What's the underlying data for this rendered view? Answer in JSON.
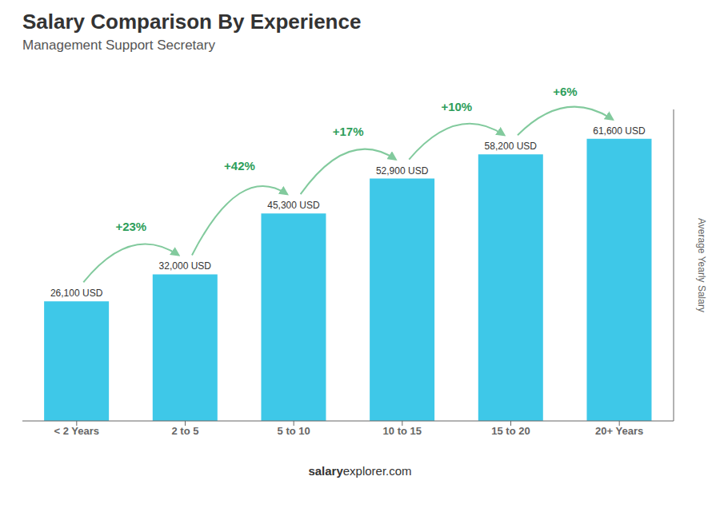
{
  "chart_data": {
    "type": "bar",
    "title": "Salary Comparison By Experience",
    "subtitle": "Management Support Secretary",
    "categories": [
      "< 2 Years",
      "2 to 5",
      "5 to 10",
      "10 to 15",
      "15 to 20",
      "20+ Years"
    ],
    "values": [
      26100,
      32000,
      45300,
      52900,
      58200,
      61600
    ],
    "value_labels": [
      "26,100 USD",
      "32,000 USD",
      "45,300 USD",
      "52,900 USD",
      "58,200 USD",
      "61,600 USD"
    ],
    "annotations": [
      "+23%",
      "+42%",
      "+17%",
      "+10%",
      "+6%"
    ],
    "ylabel": "Average Yearly Salary",
    "footer": [
      "salary",
      "explorer.com"
    ],
    "color": "#3ec8e8",
    "ylim": [
      0,
      68000
    ],
    "yticks": [],
    "tick_labels": "x",
    "grid": false
  }
}
